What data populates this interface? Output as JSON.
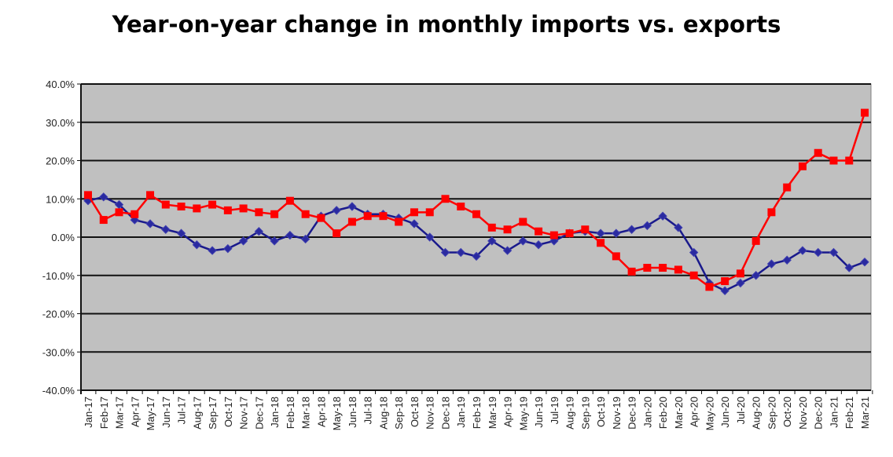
{
  "chart_data": {
    "type": "line",
    "title": "Year-on-year change in monthly imports vs. exports",
    "xlabel": "",
    "ylabel": "",
    "ylim": [
      -40,
      40
    ],
    "yticks": [
      40,
      30,
      20,
      10,
      0,
      -10,
      -20,
      -30,
      -40
    ],
    "ytick_labels": [
      "40.0%",
      "30.0%",
      "20.0%",
      "10.0%",
      "0.0%",
      "-10.0%",
      "-20.0%",
      "-30.0%",
      "-40.0%"
    ],
    "grid": true,
    "legend": "none",
    "x": [
      "Jan-17",
      "Feb-17",
      "Mar-17",
      "Apr-17",
      "May-17",
      "Jun-17",
      "Jul-17",
      "Aug-17",
      "Sep-17",
      "Oct-17",
      "Nov-17",
      "Dec-17",
      "Jan-18",
      "Feb-18",
      "Mar-18",
      "Apr-18",
      "May-18",
      "Jun-18",
      "Jul-18",
      "Aug-18",
      "Sep-18",
      "Oct-18",
      "Nov-18",
      "Dec-18",
      "Jan-19",
      "Feb-19",
      "Mar-19",
      "Apr-19",
      "May-19",
      "Jun-19",
      "Jul-19",
      "Aug-19",
      "Sep-19",
      "Oct-19",
      "Nov-19",
      "Dec-19",
      "Jan-20",
      "Feb-20",
      "Mar-20",
      "Apr-20",
      "May-20",
      "Jun-20",
      "Jul-20",
      "Aug-20",
      "Sep-20",
      "Oct-20",
      "Nov-20",
      "Dec-20",
      "Jan-21",
      "Feb-21",
      "Mar-21"
    ],
    "series": [
      {
        "id": "red-squares",
        "color": "#ff0000",
        "marker": "square",
        "values": [
          11,
          4.5,
          6.5,
          6,
          11,
          8.5,
          8,
          7.5,
          8.5,
          7,
          7.5,
          6.5,
          6,
          9.5,
          6,
          5,
          1,
          4,
          5.5,
          5.5,
          4,
          6.5,
          6.5,
          10,
          8,
          6,
          2.5,
          2,
          4,
          1.5,
          0.5,
          1,
          2,
          -1.5,
          -5,
          -9,
          -8,
          -8,
          -8.5,
          -10,
          -13,
          -11.5,
          -9.5,
          -1,
          6.5,
          13,
          18.5,
          22,
          20,
          20,
          32.5
        ]
      },
      {
        "id": "blue-diamonds",
        "color": "#1a1a8c",
        "marker": "diamond",
        "values": [
          9.5,
          10.5,
          8.5,
          4.5,
          3.5,
          2,
          1,
          -2,
          -3.5,
          -3,
          -1,
          1.5,
          -1,
          0.5,
          -0.5,
          5.5,
          7,
          8,
          6,
          6,
          5,
          3.5,
          0,
          -4,
          -4,
          -5,
          -1,
          -3.5,
          -1,
          -2,
          -1,
          1,
          1.5,
          1,
          1,
          2,
          3,
          5.5,
          2.5,
          -4,
          -12,
          -14,
          -12,
          -10,
          -7,
          -6,
          -3.5,
          -4,
          -4,
          -8,
          -6.5
        ]
      }
    ]
  }
}
